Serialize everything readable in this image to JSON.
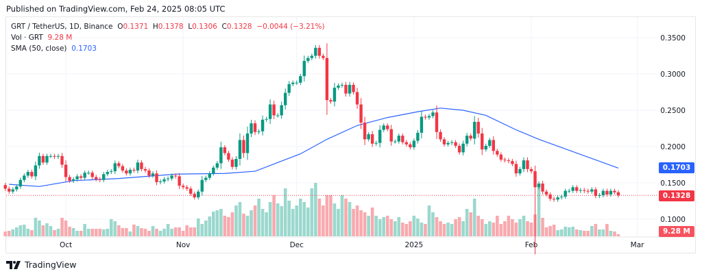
{
  "published": "Published on TradingView.com, Feb 24, 2025 08:05 UTC",
  "legend": {
    "symbol": "GRT / TetherUS, 1D, Binance",
    "o_label": "O",
    "o": "0.1371",
    "h_label": "H",
    "h": "0.1378",
    "l_label": "L",
    "l": "0.1306",
    "c_label": "C",
    "c": "0.1328",
    "change": "−0.0044 (−3.21%)",
    "vol_label": "Vol · GRT",
    "vol": "9.28 M",
    "sma_label": "SMA (50, close)",
    "sma": "0.1703"
  },
  "tags": {
    "sma": "0.1703",
    "price": "0.1328",
    "volume": "9.28 M"
  },
  "logo": "TradingView",
  "colors": {
    "up": "#089981",
    "down": "#f23645",
    "sma": "#2962ff",
    "vol_up": "#9bd8cd",
    "vol_down": "#f8aaaf"
  },
  "chart_data": {
    "type": "candlestick",
    "interval": "1D",
    "x_range": [
      "2024-09-15",
      "2025-02-24"
    ],
    "ylim": [
      0.09,
      0.36
    ],
    "y_ticks": [
      "0.1000",
      "0.1500",
      "0.2000",
      "0.2500",
      "0.3000",
      "0.3500"
    ],
    "y_tick_values": [
      0.1,
      0.15,
      0.2,
      0.25,
      0.3,
      0.35
    ],
    "x_ticks": [
      {
        "label": "Oct",
        "date": "2024-10-01"
      },
      {
        "label": "Nov",
        "date": "2024-11-01"
      },
      {
        "label": "Dec",
        "date": "2024-12-01"
      },
      {
        "label": "2025",
        "date": "2025-01-01"
      },
      {
        "label": "Feb",
        "date": "2025-02-01"
      },
      {
        "label": "Mar",
        "date": "2025-03-01"
      }
    ],
    "first_open": 0.147,
    "closes": [
      0.142,
      0.138,
      0.141,
      0.145,
      0.154,
      0.16,
      0.165,
      0.159,
      0.174,
      0.187,
      0.178,
      0.187,
      0.187,
      0.186,
      0.187,
      0.175,
      0.158,
      0.153,
      0.155,
      0.159,
      0.157,
      0.164,
      0.164,
      0.158,
      0.155,
      0.154,
      0.162,
      0.165,
      0.166,
      0.177,
      0.173,
      0.167,
      0.163,
      0.168,
      0.167,
      0.178,
      0.169,
      0.167,
      0.16,
      0.163,
      0.151,
      0.152,
      0.155,
      0.156,
      0.16,
      0.159,
      0.146,
      0.144,
      0.142,
      0.135,
      0.13,
      0.138,
      0.154,
      0.157,
      0.163,
      0.171,
      0.177,
      0.199,
      0.191,
      0.182,
      0.172,
      0.183,
      0.209,
      0.191,
      0.218,
      0.232,
      0.22,
      0.221,
      0.237,
      0.238,
      0.258,
      0.243,
      0.243,
      0.257,
      0.274,
      0.286,
      0.288,
      0.288,
      0.297,
      0.318,
      0.322,
      0.325,
      0.336,
      0.325,
      0.322,
      0.264,
      0.262,
      0.281,
      0.284,
      0.285,
      0.273,
      0.285,
      0.275,
      0.258,
      0.233,
      0.21,
      0.217,
      0.204,
      0.205,
      0.223,
      0.229,
      0.224,
      0.207,
      0.207,
      0.215,
      0.206,
      0.203,
      0.199,
      0.208,
      0.219,
      0.241,
      0.24,
      0.242,
      0.247,
      0.22,
      0.21,
      0.203,
      0.205,
      0.206,
      0.201,
      0.192,
      0.204,
      0.215,
      0.211,
      0.234,
      0.218,
      0.196,
      0.201,
      0.209,
      0.194,
      0.189,
      0.182,
      0.181,
      0.18,
      0.176,
      0.163,
      0.169,
      0.181,
      0.169,
      0.166,
      0.144,
      0.149,
      0.138,
      0.134,
      0.128,
      0.127,
      0.13,
      0.131,
      0.139,
      0.139,
      0.144,
      0.139,
      0.14,
      0.139,
      0.138,
      0.141,
      0.132,
      0.133,
      0.139,
      0.134,
      0.139,
      0.137,
      0.1328
    ],
    "volumes_m": [
      21,
      24,
      30,
      39,
      48,
      51,
      33,
      27,
      81,
      69,
      48,
      57,
      45,
      27,
      33,
      81,
      69,
      42,
      36,
      24,
      24,
      54,
      33,
      33,
      33,
      33,
      30,
      33,
      75,
      66,
      48,
      36,
      36,
      21,
      51,
      45,
      36,
      33,
      24,
      45,
      33,
      24,
      33,
      54,
      33,
      39,
      39,
      24,
      48,
      39,
      39,
      78,
      54,
      69,
      87,
      108,
      114,
      120,
      90,
      84,
      105,
      135,
      150,
      99,
      90,
      114,
      135,
      165,
      120,
      105,
      150,
      180,
      144,
      132,
      210,
      156,
      120,
      135,
      165,
      150,
      126,
      210,
      234,
      165,
      135,
      180,
      180,
      144,
      120,
      180,
      165,
      150,
      120,
      135,
      114,
      105,
      90,
      126,
      90,
      75,
      84,
      90,
      75,
      66,
      84,
      60,
      54,
      66,
      90,
      78,
      60,
      54,
      135,
      105,
      84,
      66,
      54,
      60,
      54,
      75,
      84,
      66,
      120,
      105,
      165,
      90,
      75,
      54,
      66,
      60,
      90,
      54,
      66,
      90,
      75,
      60,
      75,
      90,
      66,
      60,
      96,
      231,
      81,
      39,
      45,
      51,
      27,
      30,
      42,
      39,
      42,
      30,
      27,
      24,
      24,
      45,
      54,
      30,
      30,
      54,
      24,
      21,
      9.28
    ],
    "sma_50": [
      [
        "2024-09-16",
        0.148
      ],
      [
        "2024-09-24",
        0.145
      ],
      [
        "2024-10-03",
        0.153
      ],
      [
        "2024-10-15",
        0.156
      ],
      [
        "2024-10-30",
        0.162
      ],
      [
        "2024-11-12",
        0.163
      ],
      [
        "2024-11-20",
        0.166
      ],
      [
        "2024-12-02",
        0.19
      ],
      [
        "2024-12-09",
        0.21
      ],
      [
        "2024-12-17",
        0.229
      ],
      [
        "2024-12-25",
        0.24
      ],
      [
        "2025-01-02",
        0.248
      ],
      [
        "2025-01-08",
        0.253
      ],
      [
        "2025-01-14",
        0.25
      ],
      [
        "2025-01-20",
        0.243
      ],
      [
        "2025-01-28",
        0.223
      ],
      [
        "2025-02-03",
        0.21
      ],
      [
        "2025-02-24",
        0.1703
      ]
    ],
    "last_price": 0.1328
  }
}
